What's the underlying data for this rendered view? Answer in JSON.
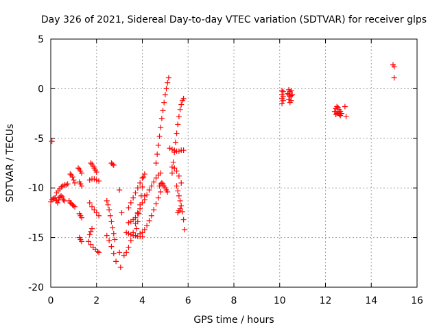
{
  "chart_data": {
    "type": "scatter",
    "title": "Day 326 of 2021, Sidereal Day-to-day VTEC variation (SDTVAR) for receiver glps",
    "xlabel": "GPS time / hours",
    "ylabel": "SDTVAR / TECUs",
    "xlim": [
      0,
      16
    ],
    "ylim": [
      -20,
      5
    ],
    "xticks": [
      0,
      2,
      4,
      6,
      8,
      10,
      12,
      14,
      16
    ],
    "yticks": [
      -20,
      -15,
      -10,
      -5,
      0,
      5
    ],
    "xtick_labels": [
      "0",
      "2",
      "4",
      "6",
      "8",
      "10",
      "12",
      "14",
      "16"
    ],
    "ytick_labels": [
      "-20",
      "-15",
      "-10",
      "-5",
      "0",
      "5"
    ],
    "grid": true,
    "marker": "+",
    "color": "#ff0000",
    "segments": [
      {
        "x": [
          0.0,
          0.05,
          0.1,
          0.15,
          0.2,
          0.25,
          0.3,
          0.35,
          0.4
        ],
        "y": [
          -11.4,
          -11.2,
          -11.1,
          -11.0,
          -11.0,
          -11.3,
          -11.5,
          -11.2,
          -10.9
        ]
      },
      {
        "x": [
          0.25,
          0.32,
          0.39,
          0.46,
          0.53,
          0.6,
          0.67,
          0.74
        ],
        "y": [
          -10.5,
          -10.3,
          -10.1,
          -9.9,
          -9.8,
          -9.7,
          -9.7,
          -9.6
        ]
      },
      {
        "x": [
          0.05
        ],
        "y": [
          -5.3
        ]
      },
      {
        "x": [
          0.4,
          0.45,
          0.5,
          0.55,
          0.6
        ],
        "y": [
          -11.0,
          -10.8,
          -10.9,
          -11.2,
          -11.3
        ]
      },
      {
        "x": [
          0.8,
          0.85,
          0.9,
          0.95,
          1.0,
          1.05
        ],
        "y": [
          -11.3,
          -11.5,
          -11.6,
          -11.7,
          -11.8,
          -11.9
        ]
      },
      {
        "x": [
          0.85,
          0.9,
          0.95,
          1.0,
          1.05
        ],
        "y": [
          -8.6,
          -8.7,
          -8.9,
          -9.2,
          -9.5
        ]
      },
      {
        "x": [
          1.2,
          1.25,
          1.3,
          1.35
        ],
        "y": [
          -8.0,
          -8.1,
          -8.3,
          -8.5
        ]
      },
      {
        "x": [
          1.25,
          1.3,
          1.35
        ],
        "y": [
          -9.4,
          -9.6,
          -9.8
        ]
      },
      {
        "x": [
          1.25,
          1.3,
          1.35
        ],
        "y": [
          -12.6,
          -12.8,
          -13.0
        ]
      },
      {
        "x": [
          1.25,
          1.3,
          1.35
        ],
        "y": [
          -15.0,
          -15.2,
          -15.4
        ]
      },
      {
        "x": [
          1.65,
          1.75,
          1.85,
          1.95,
          2.05,
          2.1
        ],
        "y": [
          -15.4,
          -15.7,
          -16.0,
          -16.2,
          -16.4,
          -16.5
        ]
      },
      {
        "x": [
          1.7,
          1.75,
          1.8
        ],
        "y": [
          -14.7,
          -14.4,
          -14.1
        ]
      },
      {
        "x": [
          1.7,
          1.8,
          1.9,
          2.0,
          2.1
        ],
        "y": [
          -11.5,
          -11.9,
          -12.2,
          -12.5,
          -12.8
        ]
      },
      {
        "x": [
          1.7,
          1.8,
          1.9,
          2.0,
          2.1
        ],
        "y": [
          -9.2,
          -9.1,
          -9.1,
          -9.2,
          -9.3
        ]
      },
      {
        "x": [
          1.75,
          1.8,
          1.85,
          1.9,
          1.95,
          2.0
        ],
        "y": [
          -7.5,
          -7.6,
          -7.8,
          -8.0,
          -8.2,
          -8.4
        ]
      },
      {
        "x": [
          2.45,
          2.5,
          2.55,
          2.6,
          2.65,
          2.7,
          2.75,
          2.8
        ],
        "y": [
          -11.3,
          -11.7,
          -12.2,
          -12.8,
          -13.4,
          -14.0,
          -14.6,
          -15.2
        ]
      },
      {
        "x": [
          2.45,
          2.55,
          2.65,
          2.75,
          2.85
        ],
        "y": [
          -14.8,
          -15.3,
          -15.9,
          -16.6,
          -17.4
        ]
      },
      {
        "x": [
          2.65,
          2.7,
          2.75
        ],
        "y": [
          -7.5,
          -7.6,
          -7.7
        ]
      },
      {
        "x": [
          3.0,
          3.0,
          3.05,
          3.1
        ],
        "y": [
          -10.2,
          -16.5,
          -18.0,
          -12.5
        ]
      },
      {
        "x": [
          3.2,
          3.3,
          3.4,
          3.5,
          3.6,
          3.7,
          3.8
        ],
        "y": [
          -16.8,
          -16.5,
          -16.0,
          -15.3,
          -14.5,
          -13.6,
          -12.5
        ]
      },
      {
        "x": [
          3.3,
          3.4,
          3.5,
          3.6,
          3.7,
          3.8,
          3.9,
          4.0
        ],
        "y": [
          -14.5,
          -14.6,
          -14.7,
          -14.8,
          -14.8,
          -14.9,
          -14.9,
          -14.9
        ]
      },
      {
        "x": [
          3.4,
          3.5,
          3.6,
          3.7,
          3.8,
          3.9,
          4.0,
          4.1
        ],
        "y": [
          -13.5,
          -13.4,
          -13.2,
          -13.0,
          -12.6,
          -12.1,
          -11.5,
          -10.8
        ]
      },
      {
        "x": [
          3.4,
          3.5,
          3.6,
          3.7,
          3.8,
          3.9,
          4.0,
          4.1
        ],
        "y": [
          -12.0,
          -11.5,
          -11.0,
          -10.5,
          -10.0,
          -9.5,
          -9.0,
          -8.6
        ]
      },
      {
        "x": [
          3.7,
          3.75,
          3.8,
          3.85,
          3.9,
          3.95,
          4.0,
          4.05
        ],
        "y": [
          -14.8,
          -14.1,
          -13.4,
          -12.6,
          -11.7,
          -10.8,
          -9.9,
          -8.9
        ]
      },
      {
        "x": [
          3.9,
          4.0,
          4.1,
          4.2,
          4.3,
          4.4,
          4.5,
          4.6,
          4.7,
          4.8,
          4.9
        ],
        "y": [
          -14.6,
          -14.5,
          -14.2,
          -13.8,
          -13.3,
          -12.8,
          -12.2,
          -11.6,
          -11.0,
          -10.4,
          -9.8
        ]
      },
      {
        "x": [
          4.1,
          4.2,
          4.3,
          4.4,
          4.5,
          4.6,
          4.7,
          4.8
        ],
        "y": [
          -11.2,
          -10.7,
          -10.2,
          -9.8,
          -9.4,
          -9.0,
          -8.7,
          -8.5
        ]
      },
      {
        "x": [
          4.6,
          4.65,
          4.7,
          4.75,
          4.8,
          4.85,
          4.9,
          4.95,
          5.0,
          5.05,
          5.1,
          5.15
        ],
        "y": [
          -7.5,
          -6.6,
          -5.7,
          -4.8,
          -3.9,
          -3.0,
          -2.2,
          -1.4,
          -0.6,
          0.0,
          0.6,
          1.1
        ]
      },
      {
        "x": [
          4.75,
          4.8,
          4.85,
          4.9,
          4.95,
          5.0,
          5.05,
          5.1
        ],
        "y": [
          -9.8,
          -9.6,
          -9.5,
          -9.6,
          -9.8,
          -10.0,
          -10.2,
          -10.4
        ]
      },
      {
        "x": [
          5.2,
          5.3,
          5.4,
          5.5,
          5.6,
          5.7,
          5.8
        ],
        "y": [
          -6.0,
          -6.1,
          -6.2,
          -6.3,
          -6.3,
          -6.2,
          -6.2
        ]
      },
      {
        "x": [
          5.3,
          5.35,
          5.4,
          5.45,
          5.5,
          5.55,
          5.6,
          5.65,
          5.7,
          5.75,
          5.8
        ],
        "y": [
          -8.5,
          -7.4,
          -6.4,
          -5.4,
          -4.5,
          -3.6,
          -2.8,
          -2.1,
          -1.6,
          -1.2,
          -1.0
        ]
      },
      {
        "x": [
          5.3,
          5.4,
          5.5,
          5.6,
          5.7
        ],
        "y": [
          -7.9,
          -8.0,
          -8.3,
          -8.8,
          -9.5
        ]
      },
      {
        "x": [
          5.5,
          5.55,
          5.6,
          5.65,
          5.7,
          5.75,
          5.8,
          5.85
        ],
        "y": [
          -9.8,
          -10.3,
          -10.8,
          -11.3,
          -11.8,
          -12.4,
          -13.2,
          -14.2
        ]
      },
      {
        "x": [
          5.55,
          5.6,
          5.65
        ],
        "y": [
          -12.5,
          -12.3,
          -12.1
        ]
      },
      {
        "x": [
          10.1,
          10.1,
          10.1,
          10.1,
          10.15,
          10.15,
          10.15
        ],
        "y": [
          -0.2,
          -0.6,
          -1.0,
          -1.5,
          -0.3,
          -0.8,
          -1.2
        ]
      },
      {
        "x": [
          10.35,
          10.4,
          10.4,
          10.4,
          10.45,
          10.45,
          10.45,
          10.5,
          10.5,
          10.5,
          10.55
        ],
        "y": [
          -0.5,
          -0.1,
          -0.6,
          -1.1,
          -0.3,
          -0.8,
          -1.4,
          -0.2,
          -0.7,
          -1.2,
          -0.6
        ]
      },
      {
        "x": [
          12.4,
          12.45,
          12.5,
          12.55,
          12.6,
          12.65,
          12.7
        ],
        "y": [
          -2.3,
          -2.0,
          -1.8,
          -1.9,
          -2.1,
          -2.3,
          -2.5
        ]
      },
      {
        "x": [
          12.45,
          12.5,
          12.55,
          12.6,
          12.65
        ],
        "y": [
          -2.6,
          -2.5,
          -2.4,
          -2.6,
          -2.7
        ]
      },
      {
        "x": [
          12.85,
          12.9
        ],
        "y": [
          -1.8,
          -2.8
        ]
      },
      {
        "x": [
          14.95,
          15.0,
          15.0
        ],
        "y": [
          2.4,
          2.2,
          1.1
        ]
      }
    ]
  }
}
